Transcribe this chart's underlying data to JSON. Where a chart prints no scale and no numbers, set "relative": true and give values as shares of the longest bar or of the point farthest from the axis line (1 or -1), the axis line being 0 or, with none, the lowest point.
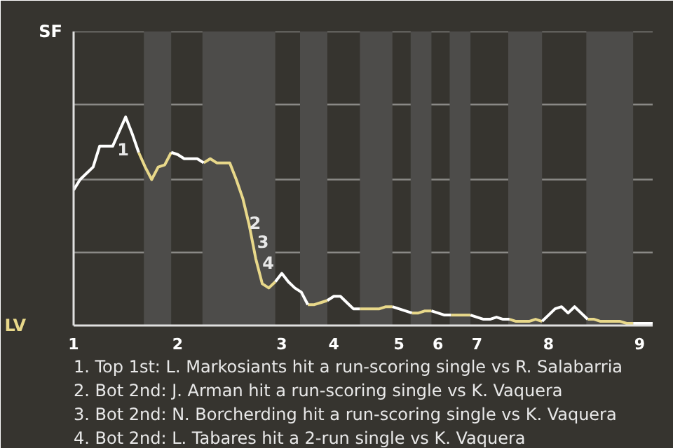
{
  "chart_data": {
    "type": "line",
    "relative": true,
    "categories": [
      "1",
      null,
      null,
      null,
      null,
      null,
      null,
      null,
      null,
      null,
      null,
      null,
      null,
      null,
      null,
      null,
      "2",
      null,
      null,
      null,
      null,
      null,
      null,
      null,
      null,
      null,
      null,
      null,
      null,
      null,
      null,
      null,
      "3",
      null,
      null,
      null,
      null,
      null,
      null,
      null,
      "4",
      null,
      null,
      null,
      null,
      null,
      null,
      null,
      null,
      null,
      "5",
      null,
      null,
      null,
      null,
      null,
      "6",
      null,
      null,
      null,
      null,
      null,
      "7",
      null,
      null,
      null,
      null,
      null,
      null,
      null,
      null,
      null,
      null,
      "8",
      null,
      null,
      null,
      null,
      null,
      null,
      null,
      null,
      null,
      null,
      null,
      null,
      null,
      "9",
      null,
      null
    ],
    "series": [
      {
        "color": "#ffffff",
        "values": [
          0.65,
          0.7,
          0.73,
          0.76,
          0.86,
          0.86,
          0.86,
          0.93,
          1,
          0.92,
          0.83,
          null,
          null,
          null,
          null,
          0.83,
          0.82,
          0.8,
          0.8,
          0.8,
          0.78,
          null,
          null,
          null,
          null,
          null,
          null,
          null,
          null,
          null,
          null,
          0.21,
          0.25,
          0.21,
          0.18,
          0.16,
          0.1,
          null,
          null,
          0.12,
          0.14,
          0.14,
          0.11,
          0.08,
          0.08,
          null,
          null,
          null,
          null,
          0.09,
          0.08,
          0.07,
          0.06,
          null,
          null,
          0.07,
          0.06,
          0.05,
          0.05,
          null,
          null,
          0.05,
          0.04,
          0.03,
          0.03,
          0.04,
          0.03,
          0.03,
          null,
          null,
          null,
          null,
          0.02,
          0.05,
          0.08,
          0.09,
          0.06,
          0.09,
          0.06,
          0.03,
          null,
          null,
          null,
          null,
          null,
          null,
          0.01,
          0.01,
          0.01,
          0.01
        ]
      },
      {
        "color": "#e8d88a",
        "values": [
          null,
          null,
          null,
          null,
          null,
          null,
          null,
          null,
          null,
          null,
          0.83,
          0.76,
          0.7,
          0.76,
          0.77,
          0.83,
          null,
          null,
          null,
          null,
          0.78,
          0.8,
          0.78,
          0.78,
          0.78,
          0.7,
          0.61,
          0.48,
          0.32,
          0.2,
          0.18,
          0.21,
          null,
          null,
          null,
          null,
          0.1,
          0.1,
          0.11,
          0.12,
          null,
          null,
          null,
          null,
          0.08,
          0.08,
          0.08,
          0.08,
          0.09,
          0.09,
          null,
          null,
          0.06,
          0.06,
          0.07,
          0.07,
          null,
          null,
          0.05,
          0.05,
          0.05,
          0.05,
          null,
          null,
          null,
          null,
          null,
          0.03,
          0.02,
          0.02,
          0.02,
          0.03,
          0.02,
          null,
          null,
          null,
          null,
          null,
          null,
          0.03,
          0.03,
          0.02,
          0.02,
          0.02,
          0.02,
          0.01,
          0.01,
          null,
          null,
          null
        ]
      }
    ],
    "marker": "none",
    "line_style": "solid",
    "ref_lines": [
      {
        "axis": "y",
        "value": 0.35,
        "color": "#8a8986"
      },
      {
        "axis": "y",
        "value": 0.7,
        "color": "#8a8986"
      },
      {
        "axis": "y",
        "value": 1.06,
        "color": "#8a8986"
      },
      {
        "axis": "y",
        "value": 1.41,
        "color": "#8a8986"
      }
    ],
    "annotations": [
      "SF",
      "LV",
      "1",
      "2",
      "3",
      "4",
      "1. Top 1st: L. Markosiants hit a run-scoring single vs R. Salabarria",
      "2. Bot 2nd: J. Arman hit a run-scoring single vs K. Vaquera",
      "3. Bot 2nd: N. Borcherding hit a run-scoring single vs K. Vaquera",
      "4. Bot 2nd: L. Tabares hit a 2-run single vs K. Vaquera"
    ]
  }
}
